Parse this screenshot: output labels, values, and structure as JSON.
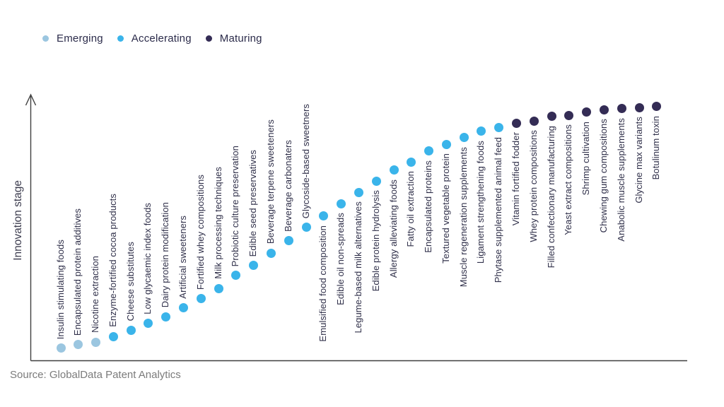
{
  "legend": {
    "items": [
      {
        "label": "Emerging",
        "color": "#9bc6e0"
      },
      {
        "label": "Accelerating",
        "color": "#3ab4ea"
      },
      {
        "label": "Maturing",
        "color": "#342c55"
      }
    ]
  },
  "footer": {
    "source": "Source: GlobalData Patent Analytics"
  },
  "chart_data": {
    "type": "scatter",
    "title": "",
    "ylabel": "Innovation stage",
    "xlabel": "",
    "legend_position": "top-left",
    "grid": false,
    "stages": [
      "Emerging",
      "Accelerating",
      "Maturing"
    ],
    "stage_colors": {
      "Emerging": "#9bc6e0",
      "Accelerating": "#3ab4ea",
      "Maturing": "#342c55"
    },
    "level_range": [
      0,
      1
    ],
    "points": [
      {
        "label": "Insulin stimulating foods",
        "stage": "Emerging",
        "level": 0.045
      },
      {
        "label": "Encapsulated protein additives",
        "stage": "Emerging",
        "level": 0.058
      },
      {
        "label": "Nicotine extraction",
        "stage": "Emerging",
        "level": 0.068
      },
      {
        "label": "Enzyme-fortified cocoa products",
        "stage": "Accelerating",
        "level": 0.089
      },
      {
        "label": "Cheese substitutes",
        "stage": "Accelerating",
        "level": 0.111
      },
      {
        "label": "Low glycaemic index foods",
        "stage": "Accelerating",
        "level": 0.137
      },
      {
        "label": "Dairy protein modification",
        "stage": "Accelerating",
        "level": 0.163
      },
      {
        "label": "Artificial sweeteners",
        "stage": "Accelerating",
        "level": 0.195
      },
      {
        "label": "Fortified whey compositions",
        "stage": "Accelerating",
        "level": 0.229
      },
      {
        "label": "Milk processing techniques",
        "stage": "Accelerating",
        "level": 0.268
      },
      {
        "label": "Probiotic culture preservation",
        "stage": "Accelerating",
        "level": 0.316
      },
      {
        "label": "Edible seed preservatives",
        "stage": "Accelerating",
        "level": 0.353
      },
      {
        "label": "Beverage terpene sweeteners",
        "stage": "Accelerating",
        "level": 0.4
      },
      {
        "label": "Beverage carbonaters",
        "stage": "Accelerating",
        "level": 0.445
      },
      {
        "label": "Glycoside-based sweetners",
        "stage": "Accelerating",
        "level": 0.495
      },
      {
        "label": "Emulsified food composition",
        "stage": "Accelerating",
        "level": 0.537
      },
      {
        "label": "Edible oil non-spreads",
        "stage": "Accelerating",
        "level": 0.584
      },
      {
        "label": "Legume-based milk alternatives",
        "stage": "Accelerating",
        "level": 0.626
      },
      {
        "label": "Edible protein hydrolysis",
        "stage": "Accelerating",
        "level": 0.668
      },
      {
        "label": "Allergy alleviating foods",
        "stage": "Accelerating",
        "level": 0.708
      },
      {
        "label": "Fatty oil extraction",
        "stage": "Accelerating",
        "level": 0.739
      },
      {
        "label": "Encapsulated proteins",
        "stage": "Accelerating",
        "level": 0.779
      },
      {
        "label": "Textured vegetable protein",
        "stage": "Accelerating",
        "level": 0.805
      },
      {
        "label": "Muscle regeneration supplements",
        "stage": "Accelerating",
        "level": 0.829
      },
      {
        "label": "Ligament strengthening foods",
        "stage": "Accelerating",
        "level": 0.853
      },
      {
        "label": "Phytase supplemented animal feed",
        "stage": "Accelerating",
        "level": 0.866
      },
      {
        "label": "Vitamin fortified fodder",
        "stage": "Maturing",
        "level": 0.884
      },
      {
        "label": "Whey protein compositions",
        "stage": "Maturing",
        "level": 0.892
      },
      {
        "label": "Filled confectionary manufacturing",
        "stage": "Maturing",
        "level": 0.908
      },
      {
        "label": "Yeast extract compositions",
        "stage": "Maturing",
        "level": 0.913
      },
      {
        "label": "Shrimp cultivation",
        "stage": "Maturing",
        "level": 0.924
      },
      {
        "label": "Chewing gum compositions",
        "stage": "Maturing",
        "level": 0.934
      },
      {
        "label": "Anabolic muscle supplements",
        "stage": "Maturing",
        "level": 0.937
      },
      {
        "label": "Glycine max variants",
        "stage": "Maturing",
        "level": 0.942
      },
      {
        "label": "Botulinum toxin",
        "stage": "Maturing",
        "level": 0.945
      }
    ]
  }
}
